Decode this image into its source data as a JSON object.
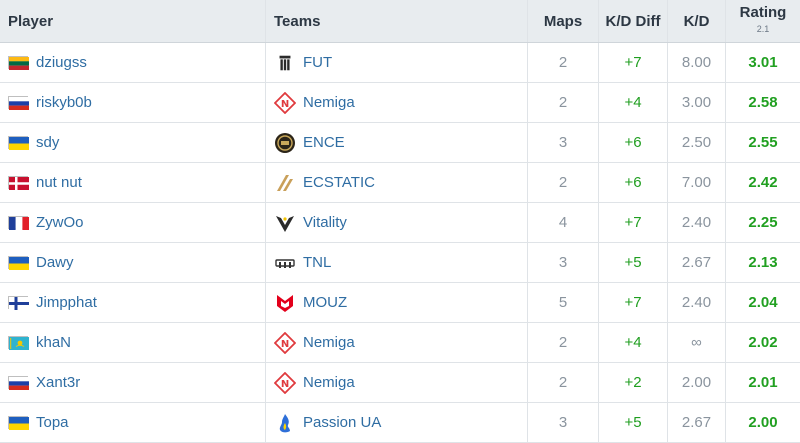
{
  "header": {
    "player": "Player",
    "teams": "Teams",
    "maps": "Maps",
    "kd_diff": "K/D Diff",
    "kd": "K/D",
    "rating": "Rating",
    "rating_version": "2.1"
  },
  "colors": {
    "link": "#2f6da3",
    "positive": "#1f9e1f",
    "muted": "#8a949e",
    "header_bg": "#e8ecef"
  },
  "rows": [
    {
      "player": "dziugss",
      "flag": "lithuania-flag",
      "team": "FUT",
      "team_icon": "fut-logo-icon",
      "maps": "2",
      "kd_diff": "+7",
      "kd": "8.00",
      "rating": "3.01"
    },
    {
      "player": "riskyb0b",
      "flag": "russia-flag",
      "team": "Nemiga",
      "team_icon": "nemiga-logo-icon",
      "maps": "2",
      "kd_diff": "+4",
      "kd": "3.00",
      "rating": "2.58"
    },
    {
      "player": "sdy",
      "flag": "ukraine-flag",
      "team": "ENCE",
      "team_icon": "ence-logo-icon",
      "maps": "3",
      "kd_diff": "+6",
      "kd": "2.50",
      "rating": "2.55"
    },
    {
      "player": "nut nut",
      "flag": "denmark-flag",
      "team": "ECSTATIC",
      "team_icon": "ecstatic-logo-icon",
      "maps": "2",
      "kd_diff": "+6",
      "kd": "7.00",
      "rating": "2.42"
    },
    {
      "player": "ZywOo",
      "flag": "france-flag",
      "team": "Vitality",
      "team_icon": "vitality-logo-icon",
      "maps": "4",
      "kd_diff": "+7",
      "kd": "2.40",
      "rating": "2.25"
    },
    {
      "player": "Dawy",
      "flag": "ukraine-flag",
      "team": "TNL",
      "team_icon": "tnl-logo-icon",
      "maps": "3",
      "kd_diff": "+5",
      "kd": "2.67",
      "rating": "2.13"
    },
    {
      "player": "Jimpphat",
      "flag": "finland-flag",
      "team": "MOUZ",
      "team_icon": "mouz-logo-icon",
      "maps": "5",
      "kd_diff": "+7",
      "kd": "2.40",
      "rating": "2.04"
    },
    {
      "player": "khaN",
      "flag": "kazakhstan-flag",
      "team": "Nemiga",
      "team_icon": "nemiga-logo-icon",
      "maps": "2",
      "kd_diff": "+4",
      "kd": "∞",
      "rating": "2.02"
    },
    {
      "player": "Xant3r",
      "flag": "russia-flag",
      "team": "Nemiga",
      "team_icon": "nemiga-logo-icon",
      "maps": "2",
      "kd_diff": "+2",
      "kd": "2.00",
      "rating": "2.01"
    },
    {
      "player": "Topa",
      "flag": "ukraine-flag",
      "team": "Passion UA",
      "team_icon": "passion-ua-logo-icon",
      "maps": "3",
      "kd_diff": "+5",
      "kd": "2.67",
      "rating": "2.00"
    }
  ]
}
